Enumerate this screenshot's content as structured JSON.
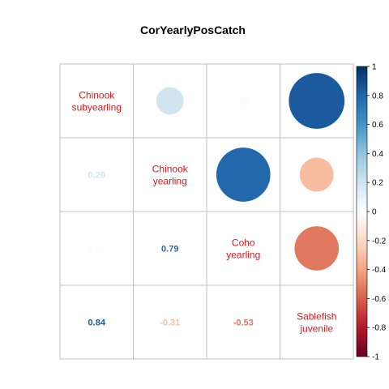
{
  "chart_data": {
    "type": "heatmap",
    "title": "CorYearlyPosCatch",
    "variables": [
      "Chinook subyearling",
      "Chinook yearling",
      "Coho yearling",
      "Sablefish juvenile"
    ],
    "diagonal_labels": [
      [
        "Chinook",
        "subyearling"
      ],
      [
        "Chinook",
        "yearling"
      ],
      [
        "Coho",
        "yearling"
      ],
      [
        "Sablefish",
        "juvenile"
      ]
    ],
    "matrix": [
      [
        1.0,
        0.2,
        0.02,
        0.84
      ],
      [
        0.2,
        1.0,
        0.79,
        -0.31
      ],
      [
        0.02,
        0.79,
        1.0,
        -0.53
      ],
      [
        0.84,
        -0.31,
        -0.53,
        1.0
      ]
    ],
    "lower_triangle_text": [
      {
        "row": 1,
        "col": 0,
        "text": "0.20"
      },
      {
        "row": 2,
        "col": 0,
        "text": "0.02"
      },
      {
        "row": 2,
        "col": 1,
        "text": "0.79"
      },
      {
        "row": 3,
        "col": 0,
        "text": "0.84"
      },
      {
        "row": 3,
        "col": 1,
        "text": "-0.31"
      },
      {
        "row": 3,
        "col": 2,
        "text": "-0.53"
      }
    ],
    "upper_triangle_method": "circle",
    "lower_triangle_method": "number",
    "colorbar": {
      "range": [
        -1,
        1
      ],
      "ticks": [
        "1",
        "0.8",
        "0.6",
        "0.4",
        "0.2",
        "0",
        "-0.2",
        "-0.4",
        "-0.6",
        "-0.8",
        "-1"
      ],
      "placement": "right",
      "colors": [
        "#67001F",
        "#B2182B",
        "#D6604D",
        "#F4A582",
        "#FDDBC7",
        "#FFFFFF",
        "#D1E5F0",
        "#92C5DE",
        "#4393C3",
        "#2166AC",
        "#053061"
      ]
    },
    "grid": true
  }
}
